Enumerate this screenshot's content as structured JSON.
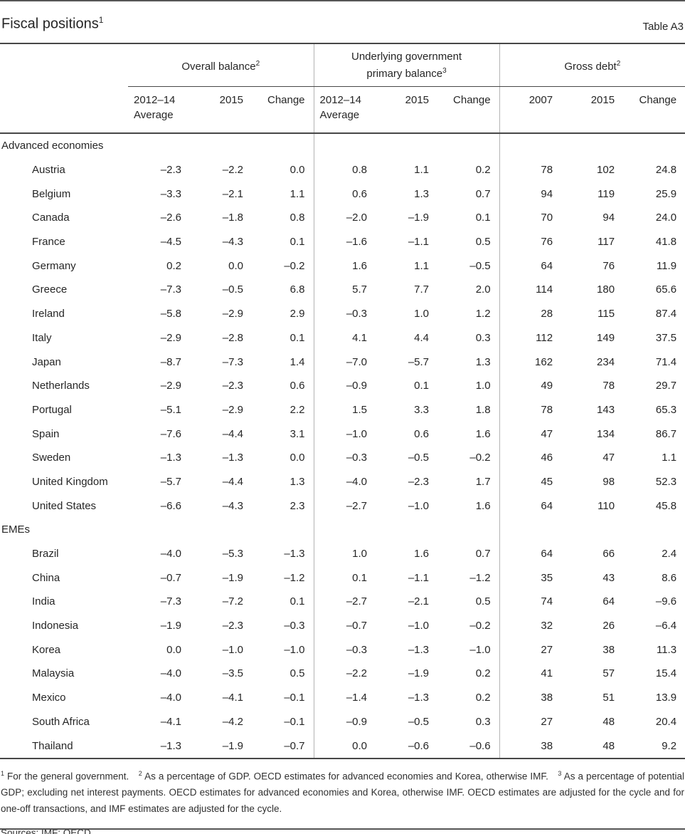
{
  "header": {
    "title": "Fiscal positions",
    "title_sup": "1",
    "table_label": "Table A3"
  },
  "table": {
    "col_groups": [
      {
        "line1": "Overall balance",
        "sup": "2",
        "subcols": [
          [
            "2012–14",
            "Average"
          ],
          [
            "2015"
          ],
          [
            "Change"
          ]
        ]
      },
      {
        "line1": "Underlying government",
        "line2": "primary balance",
        "sup": "3",
        "subcols": [
          [
            "2012–14",
            "Average"
          ],
          [
            "2015"
          ],
          [
            "Change"
          ]
        ]
      },
      {
        "line1": "Gross debt",
        "sup": "2",
        "subcols": [
          [
            "2007"
          ],
          [
            "2015"
          ],
          [
            "Change"
          ]
        ]
      }
    ],
    "sections": [
      {
        "label": "Advanced economies",
        "rows": [
          {
            "country": "Austria",
            "values": [
              "–2.3",
              "–2.2",
              "0.0",
              "0.8",
              "1.1",
              "0.2",
              "78",
              "102",
              "24.8"
            ]
          },
          {
            "country": "Belgium",
            "values": [
              "–3.3",
              "–2.1",
              "1.1",
              "0.6",
              "1.3",
              "0.7",
              "94",
              "119",
              "25.9"
            ]
          },
          {
            "country": "Canada",
            "values": [
              "–2.6",
              "–1.8",
              "0.8",
              "–2.0",
              "–1.9",
              "0.1",
              "70",
              "94",
              "24.0"
            ]
          },
          {
            "country": "France",
            "values": [
              "–4.5",
              "–4.3",
              "0.1",
              "–1.6",
              "–1.1",
              "0.5",
              "76",
              "117",
              "41.8"
            ]
          },
          {
            "country": "Germany",
            "values": [
              "0.2",
              "0.0",
              "–0.2",
              "1.6",
              "1.1",
              "–0.5",
              "64",
              "76",
              "11.9"
            ]
          },
          {
            "country": "Greece",
            "values": [
              "–7.3",
              "–0.5",
              "6.8",
              "5.7",
              "7.7",
              "2.0",
              "114",
              "180",
              "65.6"
            ]
          },
          {
            "country": "Ireland",
            "values": [
              "–5.8",
              "–2.9",
              "2.9",
              "–0.3",
              "1.0",
              "1.2",
              "28",
              "115",
              "87.4"
            ]
          },
          {
            "country": "Italy",
            "values": [
              "–2.9",
              "–2.8",
              "0.1",
              "4.1",
              "4.4",
              "0.3",
              "112",
              "149",
              "37.5"
            ]
          },
          {
            "country": "Japan",
            "values": [
              "–8.7",
              "–7.3",
              "1.4",
              "–7.0",
              "–5.7",
              "1.3",
              "162",
              "234",
              "71.4"
            ]
          },
          {
            "country": "Netherlands",
            "values": [
              "–2.9",
              "–2.3",
              "0.6",
              "–0.9",
              "0.1",
              "1.0",
              "49",
              "78",
              "29.7"
            ]
          },
          {
            "country": "Portugal",
            "values": [
              "–5.1",
              "–2.9",
              "2.2",
              "1.5",
              "3.3",
              "1.8",
              "78",
              "143",
              "65.3"
            ]
          },
          {
            "country": "Spain",
            "values": [
              "–7.6",
              "–4.4",
              "3.1",
              "–1.0",
              "0.6",
              "1.6",
              "47",
              "134",
              "86.7"
            ]
          },
          {
            "country": "Sweden",
            "values": [
              "–1.3",
              "–1.3",
              "0.0",
              "–0.3",
              "–0.5",
              "–0.2",
              "46",
              "47",
              "1.1"
            ]
          },
          {
            "country": "United Kingdom",
            "values": [
              "–5.7",
              "–4.4",
              "1.3",
              "–4.0",
              "–2.3",
              "1.7",
              "45",
              "98",
              "52.3"
            ]
          },
          {
            "country": "United States",
            "values": [
              "–6.6",
              "–4.3",
              "2.3",
              "–2.7",
              "–1.0",
              "1.6",
              "64",
              "110",
              "45.8"
            ]
          }
        ]
      },
      {
        "label": "EMEs",
        "rows": [
          {
            "country": "Brazil",
            "values": [
              "–4.0",
              "–5.3",
              "–1.3",
              "1.0",
              "1.6",
              "0.7",
              "64",
              "66",
              "2.4"
            ]
          },
          {
            "country": "China",
            "values": [
              "–0.7",
              "–1.9",
              "–1.2",
              "0.1",
              "–1.1",
              "–1.2",
              "35",
              "43",
              "8.6"
            ]
          },
          {
            "country": "India",
            "values": [
              "–7.3",
              "–7.2",
              "0.1",
              "–2.7",
              "–2.1",
              "0.5",
              "74",
              "64",
              "–9.6"
            ]
          },
          {
            "country": "Indonesia",
            "values": [
              "–1.9",
              "–2.3",
              "–0.3",
              "–0.7",
              "–1.0",
              "–0.2",
              "32",
              "26",
              "–6.4"
            ]
          },
          {
            "country": "Korea",
            "values": [
              "0.0",
              "–1.0",
              "–1.0",
              "–0.3",
              "–1.3",
              "–1.0",
              "27",
              "38",
              "11.3"
            ]
          },
          {
            "country": "Malaysia",
            "values": [
              "–4.0",
              "–3.5",
              "0.5",
              "–2.2",
              "–1.9",
              "0.2",
              "41",
              "57",
              "15.4"
            ]
          },
          {
            "country": "Mexico",
            "values": [
              "–4.0",
              "–4.1",
              "–0.1",
              "–1.4",
              "–1.3",
              "0.2",
              "38",
              "51",
              "13.9"
            ]
          },
          {
            "country": "South Africa",
            "values": [
              "–4.1",
              "–4.2",
              "–0.1",
              "–0.9",
              "–0.5",
              "0.3",
              "27",
              "48",
              "20.4"
            ]
          },
          {
            "country": "Thailand",
            "values": [
              "–1.3",
              "–1.9",
              "–0.7",
              "0.0",
              "–0.6",
              "–0.6",
              "38",
              "48",
              "9.2"
            ]
          }
        ]
      }
    ]
  },
  "footnotes": [
    {
      "marker": "1",
      "text": "For the general government."
    },
    {
      "marker": "2",
      "text": "As a percentage of GDP. OECD estimates for advanced economies and Korea, otherwise IMF."
    },
    {
      "marker": "3",
      "text": "As a percentage of potential GDP; excluding net interest payments. OECD estimates for advanced economies and Korea, otherwise IMF. OECD estimates are adjusted for the cycle and for one-off transactions, and IMF estimates are adjusted for the cycle."
    }
  ],
  "sources": "Sources: IMF; OECD."
}
